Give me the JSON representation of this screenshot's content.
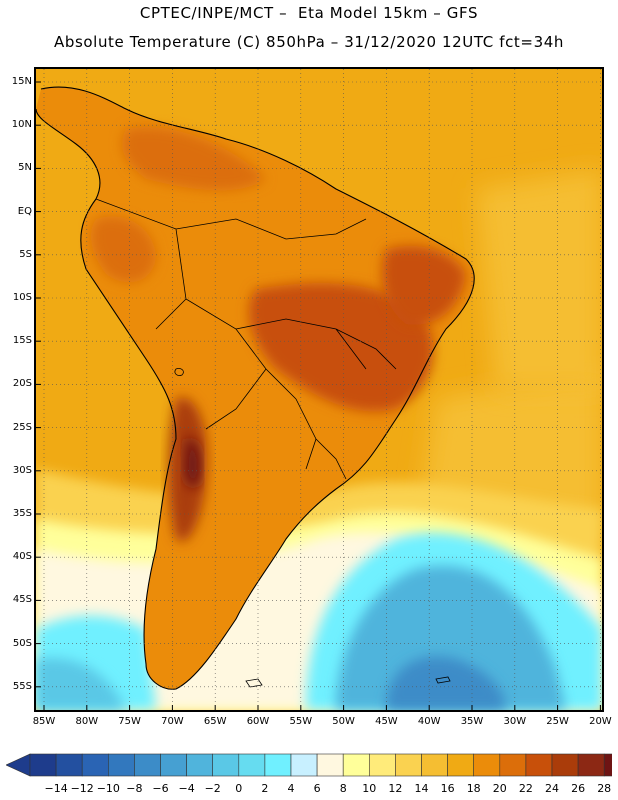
{
  "title": {
    "line1": "CPTEC/INPE/MCT –  Eta Model 15km – GFS",
    "line2": "Absolute Temperature (C) 850hPa – 31/12/2020 12UTC fct=34h"
  },
  "lat_axis": [
    "15N",
    "10N",
    "5N",
    "EQ",
    "5S",
    "10S",
    "15S",
    "20S",
    "25S",
    "30S",
    "35S",
    "40S",
    "45S",
    "50S",
    "55S"
  ],
  "lon_axis": [
    "85W",
    "80W",
    "75W",
    "70W",
    "65W",
    "60W",
    "55W",
    "50W",
    "45W",
    "40W",
    "35W",
    "30W",
    "25W",
    "20W"
  ],
  "colorbar": {
    "labels": [
      "-14",
      "-12",
      "-10",
      "-8",
      "-6",
      "-4",
      "-2",
      "0",
      "2",
      "4",
      "6",
      "8",
      "10",
      "12",
      "14",
      "16",
      "18",
      "20",
      "22",
      "24",
      "26",
      "28"
    ],
    "colors": [
      "#1e3c8c",
      "#2350a0",
      "#2a64b4",
      "#3278be",
      "#3c8cc8",
      "#46a0d2",
      "#50b4dc",
      "#5ac8e6",
      "#66dcf0",
      "#70f0ff",
      "#c8f0ff",
      "#fff8e0",
      "#ffff9a",
      "#ffeb7a",
      "#fad250",
      "#f5be32",
      "#f0aa14",
      "#eb8c0a",
      "#dc6e0a",
      "#c8500a",
      "#aa3c0a",
      "#8c2814",
      "#6e1414"
    ],
    "under_color": "#1e3c8c",
    "over_color": "#6e1414"
  },
  "colors": {
    "land_hot": "#c8500a",
    "land_very_hot": "#8c2814",
    "ocean_warm": "#f0aa14",
    "ocean_mid": "#f5be32",
    "ocean_yellow": "#fad250",
    "cold_cyan": "#5ac8e6",
    "cold_blue": "#46a0d2",
    "coast": "#000000"
  }
}
